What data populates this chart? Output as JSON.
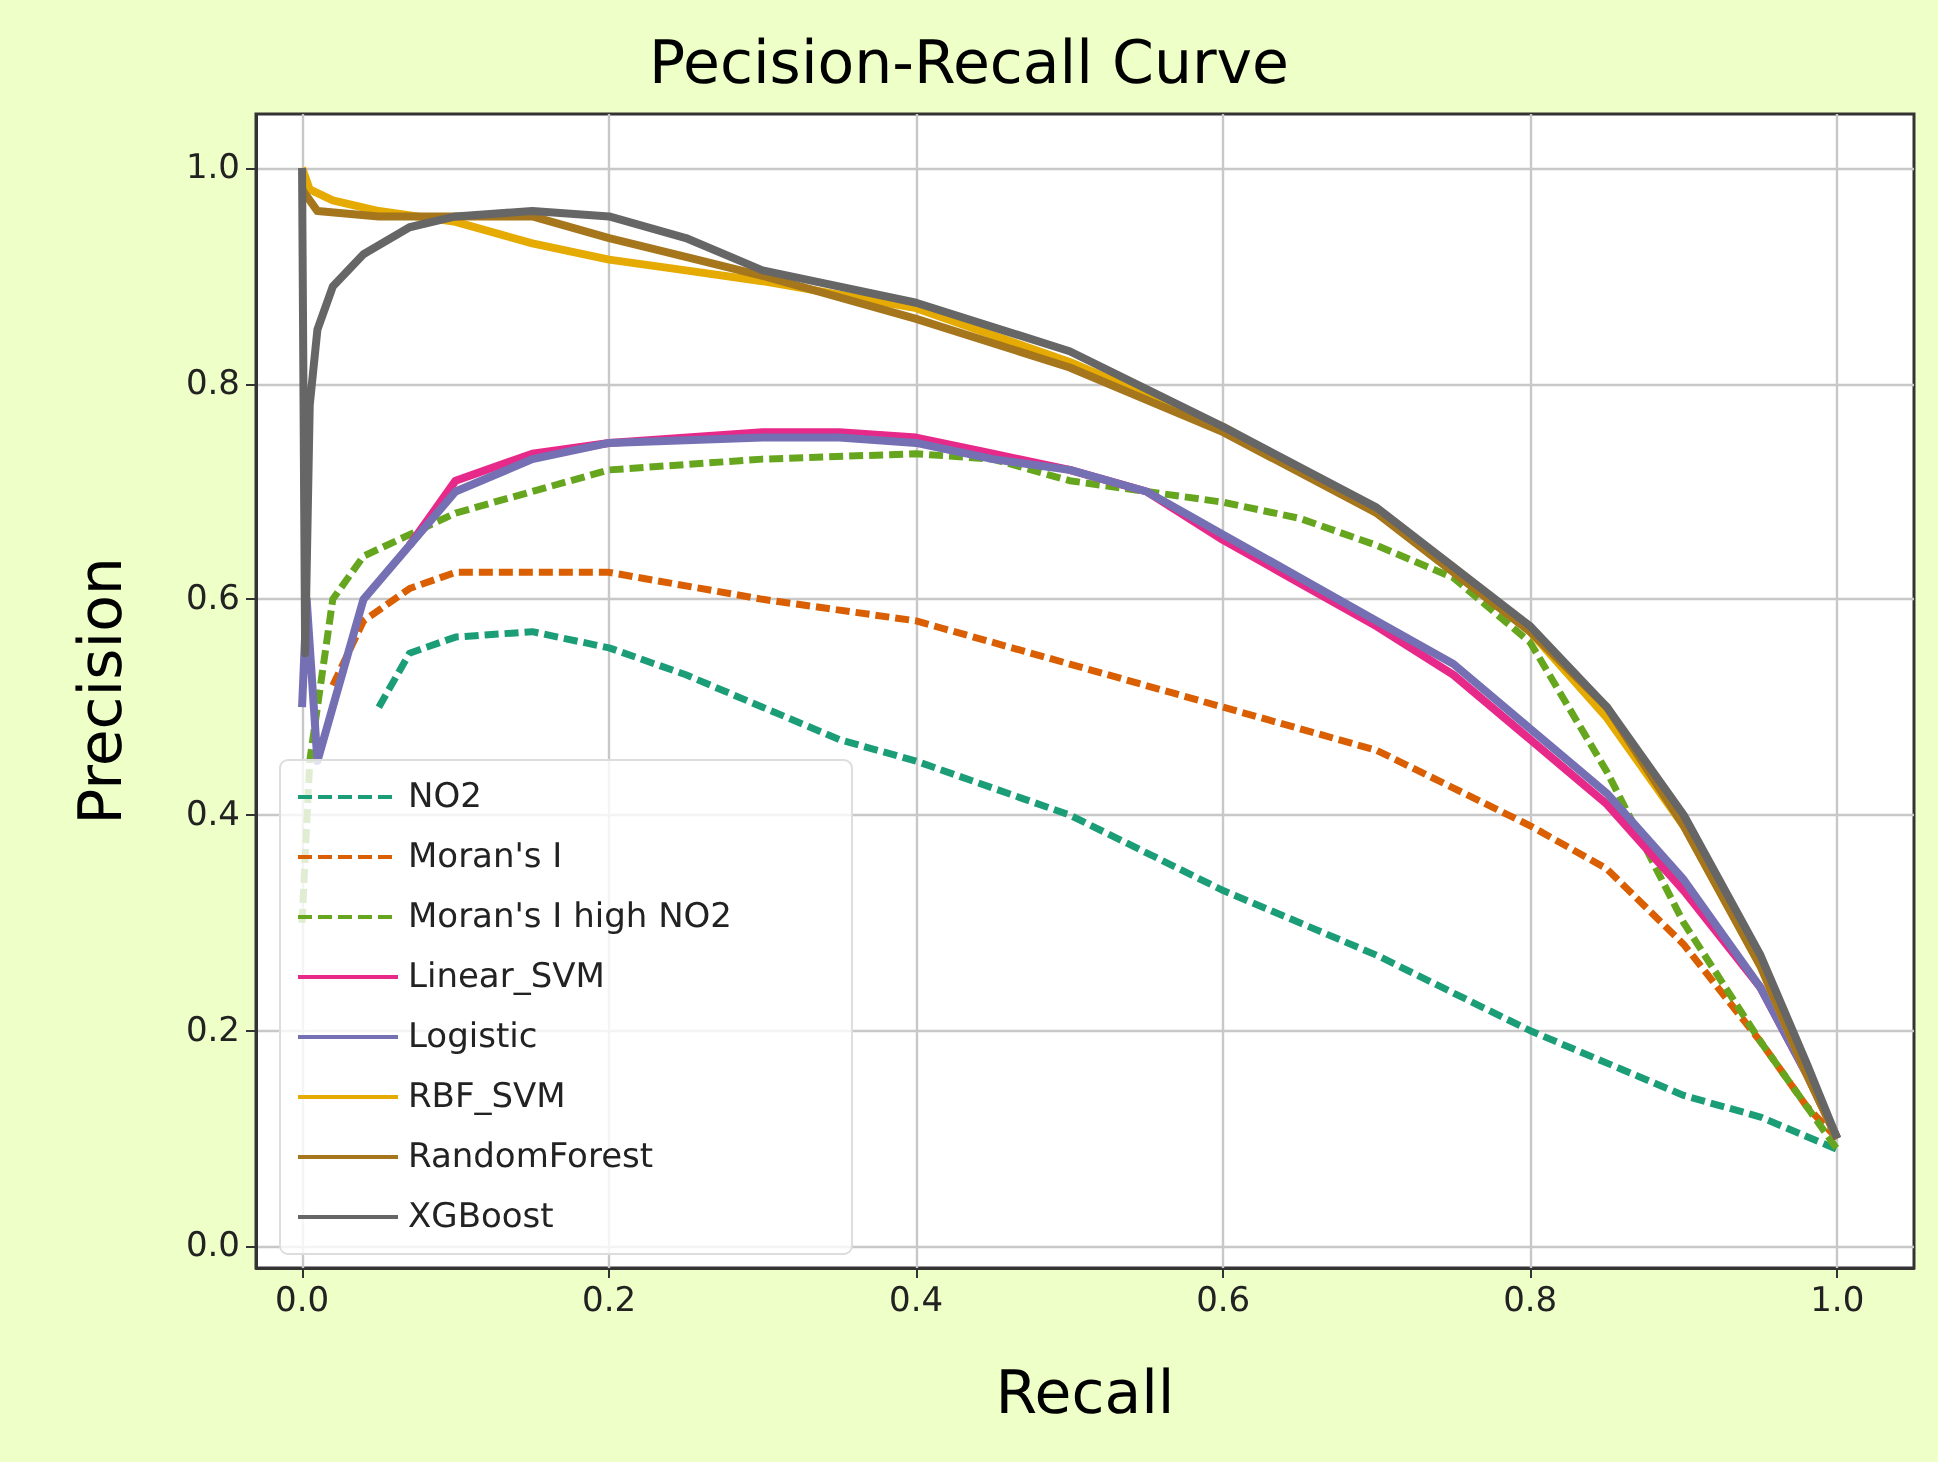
{
  "chart_data": {
    "type": "line",
    "title": "Pecision-Recall Curve",
    "xlabel": "Recall",
    "ylabel": "Precision",
    "xlim": [
      -0.03,
      1.05
    ],
    "ylim": [
      -0.02,
      1.05
    ],
    "xticks": [
      {
        "value": 0,
        "label": "0.0"
      },
      {
        "value": 0.2,
        "label": "0.2"
      },
      {
        "value": 0.4,
        "label": "0.4"
      },
      {
        "value": 0.6,
        "label": "0.6"
      },
      {
        "value": 0.8,
        "label": "0.8"
      },
      {
        "value": 1,
        "label": "1.0"
      }
    ],
    "yticks": [
      {
        "value": 0,
        "label": "0.0"
      },
      {
        "value": 0.2,
        "label": "0.2"
      },
      {
        "value": 0.4,
        "label": "0.4"
      },
      {
        "value": 0.6,
        "label": "0.6"
      },
      {
        "value": 0.8,
        "label": "0.8"
      },
      {
        "value": 1,
        "label": "1.0"
      }
    ],
    "grid": true,
    "legend": "bottom left",
    "marker": "none",
    "series": [
      {
        "name": "NO2",
        "color": "#1b9e77",
        "line_style": "dashed",
        "x": [
          0.05,
          0.07,
          0.1,
          0.15,
          0.2,
          0.25,
          0.3,
          0.35,
          0.4,
          0.5,
          0.6,
          0.7,
          0.8,
          0.9,
          0.95,
          1.0
        ],
        "values": [
          0.5,
          0.55,
          0.565,
          0.57,
          0.555,
          0.53,
          0.5,
          0.47,
          0.45,
          0.4,
          0.33,
          0.27,
          0.2,
          0.14,
          0.12,
          0.09
        ]
      },
      {
        "name": "Moran's I",
        "color": "#d95f02",
        "line_style": "dashed",
        "x": [
          0.02,
          0.04,
          0.07,
          0.1,
          0.15,
          0.2,
          0.3,
          0.4,
          0.5,
          0.6,
          0.7,
          0.8,
          0.85,
          0.9,
          0.95,
          0.98,
          1.0
        ],
        "values": [
          0.52,
          0.58,
          0.61,
          0.625,
          0.625,
          0.625,
          0.6,
          0.58,
          0.54,
          0.5,
          0.46,
          0.39,
          0.35,
          0.28,
          0.19,
          0.13,
          0.1
        ]
      },
      {
        "name": "Moran's I high NO2",
        "color": "#66a61e",
        "line_style": "dashed",
        "x": [
          0,
          0.005,
          0.02,
          0.04,
          0.07,
          0.1,
          0.15,
          0.2,
          0.3,
          0.4,
          0.45,
          0.5,
          0.55,
          0.6,
          0.65,
          0.7,
          0.75,
          0.8,
          0.85,
          0.9,
          0.95,
          0.98,
          1.0
        ],
        "values": [
          0.3,
          0.45,
          0.6,
          0.64,
          0.66,
          0.68,
          0.7,
          0.72,
          0.73,
          0.735,
          0.73,
          0.71,
          0.7,
          0.69,
          0.675,
          0.65,
          0.62,
          0.56,
          0.44,
          0.3,
          0.19,
          0.13,
          0.09
        ]
      },
      {
        "name": "Linear_SVM",
        "color": "#e7298a",
        "line_style": "solid",
        "x": [
          0.07,
          0.1,
          0.15,
          0.2,
          0.3,
          0.35,
          0.4,
          0.45,
          0.5,
          0.55,
          0.6,
          0.65,
          0.7,
          0.75,
          0.8,
          0.85,
          0.9,
          0.95,
          0.98,
          1.0
        ],
        "values": [
          0.65,
          0.71,
          0.735,
          0.745,
          0.755,
          0.755,
          0.75,
          0.735,
          0.72,
          0.7,
          0.655,
          0.615,
          0.575,
          0.53,
          0.47,
          0.41,
          0.33,
          0.24,
          0.16,
          0.1
        ]
      },
      {
        "name": "Logistic",
        "color": "#7570b3",
        "line_style": "solid",
        "x": [
          0,
          0.003,
          0.01,
          0.02,
          0.04,
          0.07,
          0.1,
          0.15,
          0.2,
          0.3,
          0.35,
          0.4,
          0.45,
          0.5,
          0.55,
          0.6,
          0.65,
          0.7,
          0.75,
          0.8,
          0.85,
          0.9,
          0.95,
          0.98,
          1.0
        ],
        "values": [
          0.5,
          0.6,
          0.45,
          0.5,
          0.6,
          0.65,
          0.7,
          0.73,
          0.745,
          0.75,
          0.75,
          0.745,
          0.73,
          0.72,
          0.7,
          0.66,
          0.62,
          0.58,
          0.54,
          0.48,
          0.42,
          0.34,
          0.24,
          0.16,
          0.1
        ]
      },
      {
        "name": "RBF_SVM",
        "color": "#e6ab02",
        "line_style": "solid",
        "x": [
          0,
          0.005,
          0.02,
          0.05,
          0.1,
          0.15,
          0.2,
          0.25,
          0.3,
          0.4,
          0.5,
          0.6,
          0.7,
          0.75,
          0.8,
          0.85,
          0.9,
          0.95,
          0.98,
          1.0
        ],
        "values": [
          1.0,
          0.98,
          0.97,
          0.96,
          0.95,
          0.93,
          0.915,
          0.905,
          0.895,
          0.87,
          0.82,
          0.76,
          0.68,
          0.63,
          0.57,
          0.49,
          0.39,
          0.26,
          0.16,
          0.1
        ]
      },
      {
        "name": "RandomForest",
        "color": "#a6761d",
        "line_style": "solid",
        "x": [
          0,
          0.01,
          0.05,
          0.1,
          0.15,
          0.2,
          0.3,
          0.4,
          0.5,
          0.6,
          0.7,
          0.8,
          0.85,
          0.9,
          0.95,
          0.98,
          1.0
        ],
        "values": [
          0.98,
          0.96,
          0.955,
          0.955,
          0.955,
          0.935,
          0.9,
          0.86,
          0.815,
          0.755,
          0.68,
          0.57,
          0.5,
          0.39,
          0.26,
          0.16,
          0.1
        ]
      },
      {
        "name": "XGBoost",
        "color": "#666666",
        "line_style": "solid",
        "x": [
          0,
          0.002,
          0.005,
          0.01,
          0.02,
          0.04,
          0.07,
          0.1,
          0.15,
          0.2,
          0.25,
          0.3,
          0.4,
          0.5,
          0.6,
          0.7,
          0.8,
          0.85,
          0.9,
          0.95,
          0.98,
          1.0
        ],
        "values": [
          1.0,
          0.55,
          0.78,
          0.85,
          0.89,
          0.92,
          0.945,
          0.955,
          0.96,
          0.955,
          0.935,
          0.905,
          0.875,
          0.83,
          0.76,
          0.685,
          0.575,
          0.5,
          0.4,
          0.27,
          0.17,
          0.1
        ]
      }
    ]
  }
}
